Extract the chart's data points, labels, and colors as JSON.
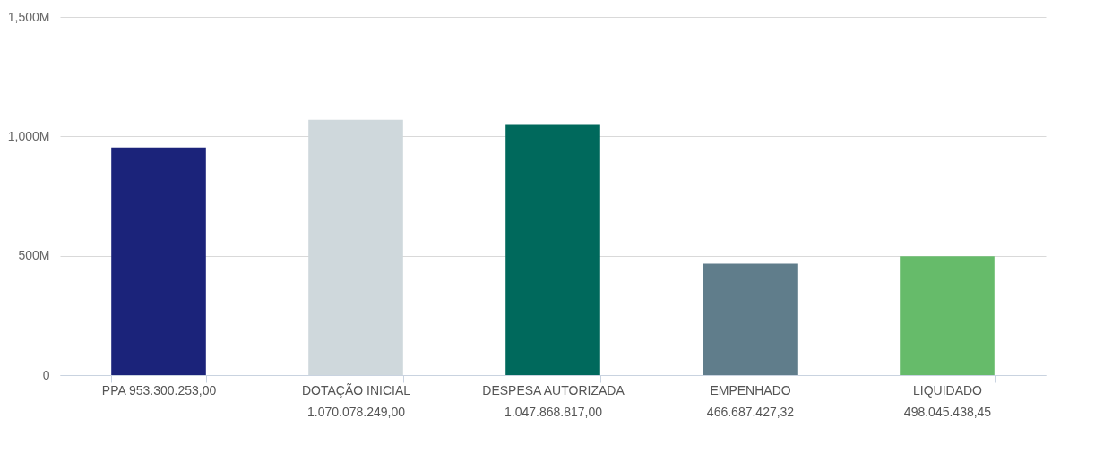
{
  "chart_data": {
    "type": "bar",
    "categories": [
      "PPA 953.300.253,00",
      "DOTAÇÃO INICIAL 1.070.078.249,00",
      "DESPESA AUTORIZADA 1.047.868.817,00",
      "EMPENHADO 466.687.427,32",
      "LIQUIDADO 498.045.438,45"
    ],
    "values": [
      953300253,
      1070078249,
      1047868817,
      466687427.32,
      498045438.45
    ],
    "colors": [
      "#1b237a",
      "#cfd8dc",
      "#00695c",
      "#607d8b",
      "#66bb6a"
    ],
    "ylim": [
      0,
      1500000000
    ],
    "yticks": [
      {
        "value": 0,
        "label": "0"
      },
      {
        "value": 500000000,
        "label": "500M"
      },
      {
        "value": 1000000000,
        "label": "1,000M"
      },
      {
        "value": 1500000000,
        "label": "1,500M"
      }
    ],
    "grid": "y"
  }
}
